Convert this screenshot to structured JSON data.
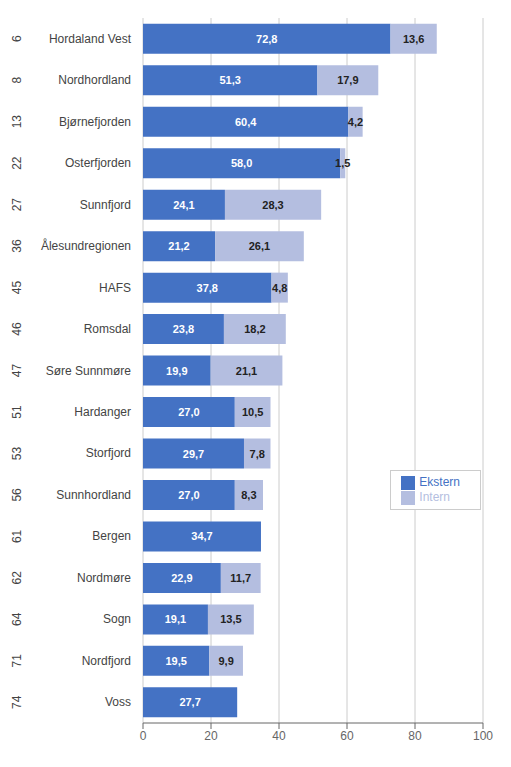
{
  "chart_data": {
    "type": "bar",
    "orientation": "horizontal",
    "stacked": true,
    "data_labels": true,
    "grid": true,
    "legend": "right",
    "categories": [
      "Hordaland Vest",
      "Nordhordland",
      "Bjørnefjorden",
      "Osterfjorden",
      "Sunnfjord",
      "Ålesundregionen",
      "HAFS",
      "Romsdal",
      "Søre Sunnmøre",
      "Hardanger",
      "Storfjord",
      "Sunnhordland",
      "Bergen",
      "Nordmøre",
      "Sogn",
      "Nordfjord",
      "Voss"
    ],
    "left_labels": [
      6,
      8,
      13,
      22,
      27,
      36,
      45,
      46,
      47,
      51,
      53,
      56,
      61,
      62,
      64,
      71,
      74
    ],
    "series": [
      {
        "name": "Ekstern",
        "color": "#4472C4",
        "values": [
          72.8,
          51.3,
          60.4,
          58.0,
          24.1,
          21.2,
          37.8,
          23.8,
          19.9,
          27.0,
          29.7,
          27.0,
          34.7,
          22.9,
          19.1,
          19.5,
          27.7
        ],
        "value_labels": [
          "72,8",
          "51,3",
          "60,4",
          "58,0",
          "24,1",
          "21,2",
          "37,8",
          "23,8",
          "19,9",
          "27,0",
          "29,7",
          "27,0",
          "34,7",
          "22,9",
          "19,1",
          "19,5",
          "27,7"
        ]
      },
      {
        "name": "Intern",
        "color": "#B4BEE0",
        "values": [
          13.6,
          17.9,
          4.2,
          1.5,
          28.3,
          26.1,
          4.8,
          18.2,
          21.1,
          10.5,
          7.8,
          8.3,
          0.0,
          11.7,
          13.5,
          9.9,
          0.0
        ],
        "value_labels": [
          "13,6",
          "17,9",
          "4,2",
          "1,5",
          "28,3",
          "26,1",
          "4,8",
          "18,2",
          "21,1",
          "10,5",
          "7,8",
          "8,3",
          null,
          "11,7",
          "13,5",
          "9,9",
          null
        ]
      }
    ],
    "xlim": [
      0,
      100
    ],
    "xticks": [
      0,
      20,
      40,
      60,
      80,
      100
    ]
  }
}
